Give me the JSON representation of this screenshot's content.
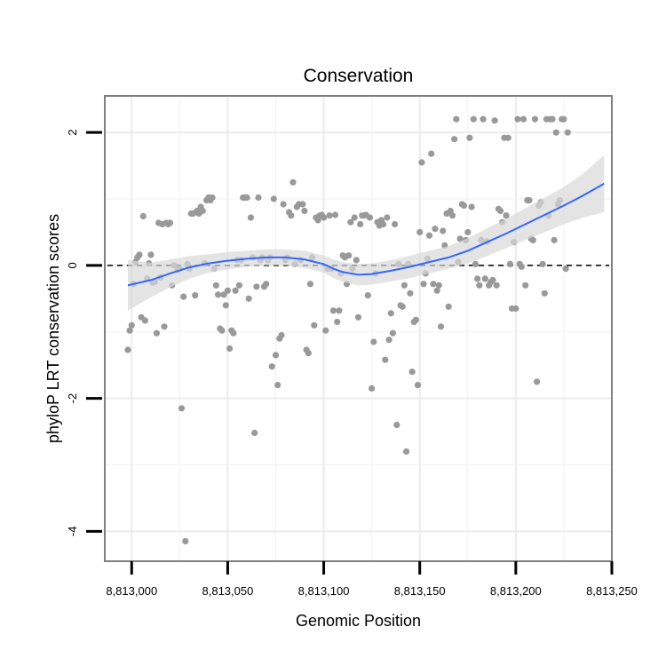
{
  "chart_data": {
    "type": "scatter",
    "title": "Conservation",
    "xlabel": "Genomic Position",
    "ylabel": "phyloP LRT conservation scores",
    "xlim": [
      8812986,
      8813250
    ],
    "ylim": [
      -4.45,
      2.55
    ],
    "x_ticks": [
      8813000,
      8813050,
      8813100,
      8813150,
      8813200,
      8813250
    ],
    "x_tick_labels": [
      "8,813,000",
      "8,813,050",
      "8,813,100",
      "8,813,150",
      "8,813,200",
      "8,813,250"
    ],
    "y_ticks": [
      2,
      0,
      -2,
      -4
    ],
    "y_tick_labels": [
      "2",
      "0",
      "-2",
      "-4"
    ],
    "minor_y_gridlines": [
      1,
      -1,
      -3
    ],
    "minor_x_gridlines": [
      8813025,
      8813075,
      8813125,
      8813175,
      8813225
    ],
    "reference_line": {
      "y": 0,
      "style": "dashed",
      "color": "#000000"
    },
    "points_color": "#999999",
    "smooth_color": "#3366ff",
    "band_color": "#d9d9d9",
    "points": [
      [
        8812998,
        -1.27
      ],
      [
        8812999,
        -0.98
      ],
      [
        8813000,
        -0.9
      ],
      [
        8813001,
        -0.28
      ],
      [
        8813002,
        0.05
      ],
      [
        8813003,
        0.12
      ],
      [
        8813004,
        0.16
      ],
      [
        8813005,
        -0.78
      ],
      [
        8813006,
        0.74
      ],
      [
        8813007,
        -0.83
      ],
      [
        8813008,
        -0.2
      ],
      [
        8813009,
        0.03
      ],
      [
        8813010,
        0.16
      ],
      [
        8813011,
        -0.26
      ],
      [
        8813012,
        -0.25
      ],
      [
        8813013,
        -1.02
      ],
      [
        8813014,
        0.64
      ],
      [
        8813015,
        -0.18
      ],
      [
        8813016,
        0.62
      ],
      [
        8813017,
        -0.92
      ],
      [
        8813018,
        0.64
      ],
      [
        8813019,
        0.62
      ],
      [
        8813020,
        0.64
      ],
      [
        8813021,
        -0.3
      ],
      [
        8813022,
        0.0
      ],
      [
        8813024,
        -0.07
      ],
      [
        8813025,
        -0.05
      ],
      [
        8813026,
        -2.15
      ],
      [
        8813027,
        -0.47
      ],
      [
        8813028,
        -4.15
      ],
      [
        8813029,
        0.02
      ],
      [
        8813030,
        -0.05
      ],
      [
        8813031,
        0.78
      ],
      [
        8813032,
        0.78
      ],
      [
        8813033,
        -0.45
      ],
      [
        8813034,
        0.82
      ],
      [
        8813035,
        0.78
      ],
      [
        8813036,
        0.88
      ],
      [
        8813037,
        0.82
      ],
      [
        8813038,
        0.03
      ],
      [
        8813039,
        0.98
      ],
      [
        8813040,
        1.02
      ],
      [
        8813041,
        0.98
      ],
      [
        8813042,
        1.02
      ],
      [
        8813043,
        -0.05
      ],
      [
        8813044,
        -0.3
      ],
      [
        8813045,
        -0.44
      ],
      [
        8813046,
        -0.95
      ],
      [
        8813047,
        -0.98
      ],
      [
        8813048,
        -0.44
      ],
      [
        8813049,
        -0.6
      ],
      [
        8813050,
        -0.38
      ],
      [
        8813051,
        -1.25
      ],
      [
        8813052,
        -0.98
      ],
      [
        8813053,
        -1.02
      ],
      [
        8813054,
        -0.38
      ],
      [
        8813055,
        0.08
      ],
      [
        8813056,
        -0.3
      ],
      [
        8813057,
        0.08
      ],
      [
        8813058,
        1.02
      ],
      [
        8813059,
        1.02
      ],
      [
        8813060,
        1.02
      ],
      [
        8813061,
        -0.5
      ],
      [
        8813062,
        0.72
      ],
      [
        8813063,
        0.12
      ],
      [
        8813064,
        -2.52
      ],
      [
        8813065,
        -0.32
      ],
      [
        8813066,
        1.02
      ],
      [
        8813067,
        0.08
      ],
      [
        8813068,
        0.12
      ],
      [
        8813069,
        -0.32
      ],
      [
        8813070,
        -0.28
      ],
      [
        8813071,
        0.08
      ],
      [
        8813072,
        0.12
      ],
      [
        8813073,
        -1.52
      ],
      [
        8813074,
        1.0
      ],
      [
        8813075,
        -1.35
      ],
      [
        8813076,
        -1.8
      ],
      [
        8813077,
        -1.1
      ],
      [
        8813078,
        -1.05
      ],
      [
        8813079,
        0.92
      ],
      [
        8813080,
        0.08
      ],
      [
        8813081,
        0.12
      ],
      [
        8813082,
        0.8
      ],
      [
        8813083,
        0.75
      ],
      [
        8813084,
        1.25
      ],
      [
        8813085,
        0.02
      ],
      [
        8813086,
        0.88
      ],
      [
        8813087,
        0.92
      ],
      [
        8813088,
        0.08
      ],
      [
        8813089,
        0.92
      ],
      [
        8813090,
        0.82
      ],
      [
        8813091,
        -1.27
      ],
      [
        8813092,
        -1.32
      ],
      [
        8813093,
        -0.28
      ],
      [
        8813094,
        0.12
      ],
      [
        8813095,
        -0.9
      ],
      [
        8813096,
        0.72
      ],
      [
        8813097,
        0.68
      ],
      [
        8813098,
        0.75
      ],
      [
        8813099,
        0.76
      ],
      [
        8813100,
        0.72
      ],
      [
        8813101,
        -0.98
      ],
      [
        8813102,
        -0.05
      ],
      [
        8813103,
        0.75
      ],
      [
        8813104,
        -0.05
      ],
      [
        8813105,
        -0.68
      ],
      [
        8813106,
        0.76
      ],
      [
        8813107,
        -0.85
      ],
      [
        8813108,
        -0.68
      ],
      [
        8813109,
        -0.12
      ],
      [
        8813110,
        0.15
      ],
      [
        8813111,
        0.12
      ],
      [
        8813112,
        -0.28
      ],
      [
        8813113,
        0.15
      ],
      [
        8813114,
        0.65
      ],
      [
        8813115,
        -0.05
      ],
      [
        8813116,
        0.72
      ],
      [
        8813117,
        0.08
      ],
      [
        8813118,
        -0.78
      ],
      [
        8813119,
        0.62
      ],
      [
        8813120,
        0.75
      ],
      [
        8813121,
        0.75
      ],
      [
        8813122,
        0.76
      ],
      [
        8813123,
        -0.45
      ],
      [
        8813124,
        0.72
      ],
      [
        8813125,
        -1.85
      ],
      [
        8813126,
        -1.15
      ],
      [
        8813127,
        -0.12
      ],
      [
        8813128,
        0.65
      ],
      [
        8813129,
        0.6
      ],
      [
        8813130,
        0.68
      ],
      [
        8813131,
        0.62
      ],
      [
        8813132,
        -1.42
      ],
      [
        8813133,
        0.72
      ],
      [
        8813134,
        -1.12
      ],
      [
        8813135,
        -0.72
      ],
      [
        8813136,
        -1.02
      ],
      [
        8813137,
        0.62
      ],
      [
        8813138,
        -2.4
      ],
      [
        8813139,
        0.02
      ],
      [
        8813140,
        -0.6
      ],
      [
        8813141,
        -0.62
      ],
      [
        8813142,
        -0.3
      ],
      [
        8813143,
        -2.8
      ],
      [
        8813144,
        0.02
      ],
      [
        8813145,
        -0.42
      ],
      [
        8813146,
        -1.6
      ],
      [
        8813147,
        -0.85
      ],
      [
        8813148,
        -0.82
      ],
      [
        8813149,
        -1.8
      ],
      [
        8813150,
        0.5
      ],
      [
        8813151,
        1.55
      ],
      [
        8813152,
        -0.28
      ],
      [
        8813153,
        -0.12
      ],
      [
        8813154,
        0.1
      ],
      [
        8813155,
        0.45
      ],
      [
        8813156,
        1.68
      ],
      [
        8813157,
        -0.28
      ],
      [
        8813158,
        0.55
      ],
      [
        8813159,
        -0.38
      ],
      [
        8813160,
        -0.3
      ],
      [
        8813161,
        -0.92
      ],
      [
        8813162,
        0.52
      ],
      [
        8813163,
        0.3
      ],
      [
        8813164,
        0.78
      ],
      [
        8813165,
        -0.62
      ],
      [
        8813166,
        0.82
      ],
      [
        8813167,
        0.75
      ],
      [
        8813168,
        1.9
      ],
      [
        8813169,
        2.2
      ],
      [
        8813170,
        0.05
      ],
      [
        8813171,
        0.4
      ],
      [
        8813172,
        0.92
      ],
      [
        8813173,
        0.9
      ],
      [
        8813174,
        0.38
      ],
      [
        8813175,
        0.5
      ],
      [
        8813176,
        1.92
      ],
      [
        8813177,
        0.88
      ],
      [
        8813178,
        2.2
      ],
      [
        8813179,
        0.02
      ],
      [
        8813180,
        -0.2
      ],
      [
        8813181,
        -0.3
      ],
      [
        8813182,
        0.38
      ],
      [
        8813183,
        2.2
      ],
      [
        8813184,
        -0.2
      ],
      [
        8813185,
        0.36
      ],
      [
        8813186,
        -0.3
      ],
      [
        8813187,
        -0.25
      ],
      [
        8813188,
        -0.22
      ],
      [
        8813189,
        2.18
      ],
      [
        8813190,
        -0.3
      ],
      [
        8813191,
        0.85
      ],
      [
        8813192,
        0.82
      ],
      [
        8813193,
        0.65
      ],
      [
        8813194,
        1.92
      ],
      [
        8813195,
        0.75
      ],
      [
        8813196,
        1.92
      ],
      [
        8813197,
        0.02
      ],
      [
        8813198,
        -0.65
      ],
      [
        8813199,
        0.35
      ],
      [
        8813200,
        -0.65
      ],
      [
        8813201,
        2.2
      ],
      [
        8813202,
        0.02
      ],
      [
        8813203,
        -0.02
      ],
      [
        8813204,
        2.2
      ],
      [
        8813205,
        -0.3
      ],
      [
        8813206,
        0.98
      ],
      [
        8813207,
        0.98
      ],
      [
        8813208,
        0.4
      ],
      [
        8813209,
        0.38
      ],
      [
        8813210,
        2.2
      ],
      [
        8813211,
        -1.75
      ],
      [
        8813212,
        0.9
      ],
      [
        8813213,
        0.95
      ],
      [
        8813214,
        0.02
      ],
      [
        8813215,
        -0.42
      ],
      [
        8813216,
        2.2
      ],
      [
        8813217,
        0.75
      ],
      [
        8813218,
        2.2
      ],
      [
        8813219,
        2.2
      ],
      [
        8813220,
        0.38
      ],
      [
        8813221,
        2.0
      ],
      [
        8813222,
        0.92
      ],
      [
        8813223,
        0.98
      ],
      [
        8813224,
        2.2
      ],
      [
        8813225,
        2.2
      ],
      [
        8813226,
        -0.05
      ],
      [
        8813227,
        2.0
      ]
    ],
    "smooth_curve": {
      "x": [
        8812998,
        8813010,
        8813020,
        8813030,
        8813040,
        8813050,
        8813060,
        8813070,
        8813080,
        8813090,
        8813100,
        8813105,
        8813110,
        8813118,
        8813125,
        8813135,
        8813145,
        8813155,
        8813165,
        8813175,
        8813185,
        8813195,
        8813205,
        8813215,
        8813225,
        8813235,
        8813246
      ],
      "y": [
        -0.3,
        -0.22,
        -0.12,
        -0.03,
        0.03,
        0.07,
        0.1,
        0.12,
        0.12,
        0.09,
        0.02,
        -0.05,
        -0.1,
        -0.14,
        -0.13,
        -0.08,
        -0.02,
        0.05,
        0.12,
        0.22,
        0.35,
        0.48,
        0.62,
        0.76,
        0.9,
        1.05,
        1.23
      ],
      "lower": [
        -0.68,
        -0.48,
        -0.33,
        -0.2,
        -0.11,
        -0.06,
        -0.02,
        0.0,
        0.0,
        -0.04,
        -0.11,
        -0.19,
        -0.25,
        -0.3,
        -0.29,
        -0.24,
        -0.19,
        -0.12,
        -0.05,
        0.03,
        0.14,
        0.26,
        0.38,
        0.5,
        0.62,
        0.72,
        0.8
      ],
      "upper": [
        0.08,
        0.04,
        0.09,
        0.14,
        0.17,
        0.2,
        0.22,
        0.24,
        0.24,
        0.22,
        0.15,
        0.09,
        0.05,
        0.02,
        0.03,
        0.08,
        0.15,
        0.22,
        0.29,
        0.41,
        0.56,
        0.7,
        0.86,
        1.02,
        1.18,
        1.38,
        1.66
      ]
    }
  }
}
